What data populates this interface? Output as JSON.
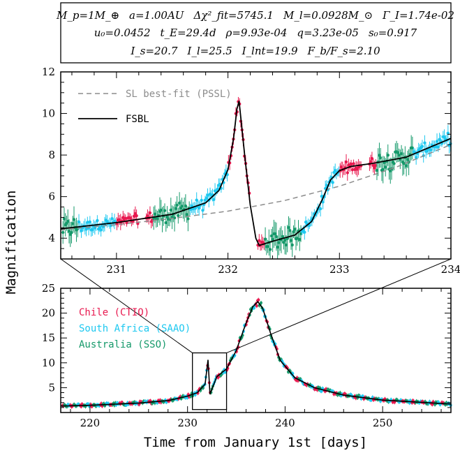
{
  "params": {
    "line1": [
      "M_p=1M_⊕",
      "a=1.00AU",
      "Δχ²_fit=5745.1",
      "M_l=0.0928M_⊙",
      "Γ_I=1.74e-02"
    ],
    "line2": [
      "u₀=0.0452",
      "t_E=29.4d",
      "ρ=9.93e-04",
      "q=3.23e-05",
      "s₀=0.917"
    ],
    "line3": [
      "I_s=20.7",
      "I_l=25.5",
      "I_lnt=19.9",
      "F_b/F_s=2.10"
    ]
  },
  "ylabel": "Magnification",
  "xlabel": "Time from January 1st [days]",
  "colors": {
    "chile": "#e8194f",
    "saao": "#1ec8f0",
    "sso": "#15996a",
    "model": "#000000",
    "pssl": "#8c8c8c"
  },
  "chart_data": [
    {
      "type": "scatter",
      "panel": "zoom",
      "xlim": [
        230.5,
        234
      ],
      "ylim": [
        3,
        12
      ],
      "xticks": [
        231,
        232,
        233,
        234
      ],
      "yticks": [
        4,
        6,
        8,
        10,
        12
      ],
      "legend_placement": "top-left",
      "series": [
        {
          "name": "SL best-fit (PSSL)",
          "kind": "dashed-line",
          "x": [
            230.5,
            231.0,
            231.5,
            232.0,
            232.5,
            233.0,
            233.5,
            234.0
          ],
          "y": [
            4.4,
            4.65,
            4.95,
            5.3,
            5.8,
            6.5,
            7.4,
            8.5
          ]
        },
        {
          "name": "FSBL",
          "kind": "line",
          "x": [
            230.5,
            231.0,
            231.5,
            231.8,
            231.92,
            232.0,
            232.05,
            232.08,
            232.1,
            232.15,
            232.2,
            232.25,
            232.28,
            232.4,
            232.6,
            232.75,
            232.85,
            232.92,
            233.0,
            233.1,
            233.3,
            233.6,
            234.0
          ],
          "y": [
            4.45,
            4.75,
            5.15,
            5.7,
            6.3,
            7.3,
            8.8,
            10.2,
            10.6,
            8.0,
            5.6,
            4.0,
            3.65,
            3.85,
            4.15,
            4.8,
            5.9,
            6.8,
            7.25,
            7.45,
            7.6,
            7.9,
            8.8
          ]
        }
      ]
    },
    {
      "type": "scatter",
      "panel": "full",
      "xlim": [
        217,
        257
      ],
      "ylim": [
        0,
        25
      ],
      "xticks": [
        220,
        230,
        240,
        250
      ],
      "yticks": [
        5,
        10,
        15,
        20,
        25
      ],
      "legend_placement": "top-left",
      "series": [
        {
          "name": "Chile (CTIO)",
          "kind": "points"
        },
        {
          "name": "South Africa (SAAO)",
          "kind": "points"
        },
        {
          "name": "Australia (SSO)",
          "kind": "points"
        },
        {
          "name": "FSBL",
          "kind": "line",
          "x": [
            217,
            220,
            225,
            228,
            230,
            231,
            231.8,
            232.1,
            232.3,
            233,
            234,
            235,
            236,
            236.7,
            237.2,
            237.7,
            238.5,
            239.5,
            241,
            243,
            246,
            250,
            257
          ],
          "y": [
            1.3,
            1.45,
            1.9,
            2.4,
            3.3,
            4.0,
            5.7,
            10.6,
            3.7,
            7.2,
            8.8,
            12.5,
            18.0,
            21.3,
            22.3,
            21.0,
            16.0,
            10.5,
            7.0,
            5.0,
            3.5,
            2.5,
            1.7
          ]
        }
      ],
      "zoom_box": {
        "x": [
          230.5,
          234
        ],
        "y": [
          0,
          12
        ]
      }
    }
  ]
}
